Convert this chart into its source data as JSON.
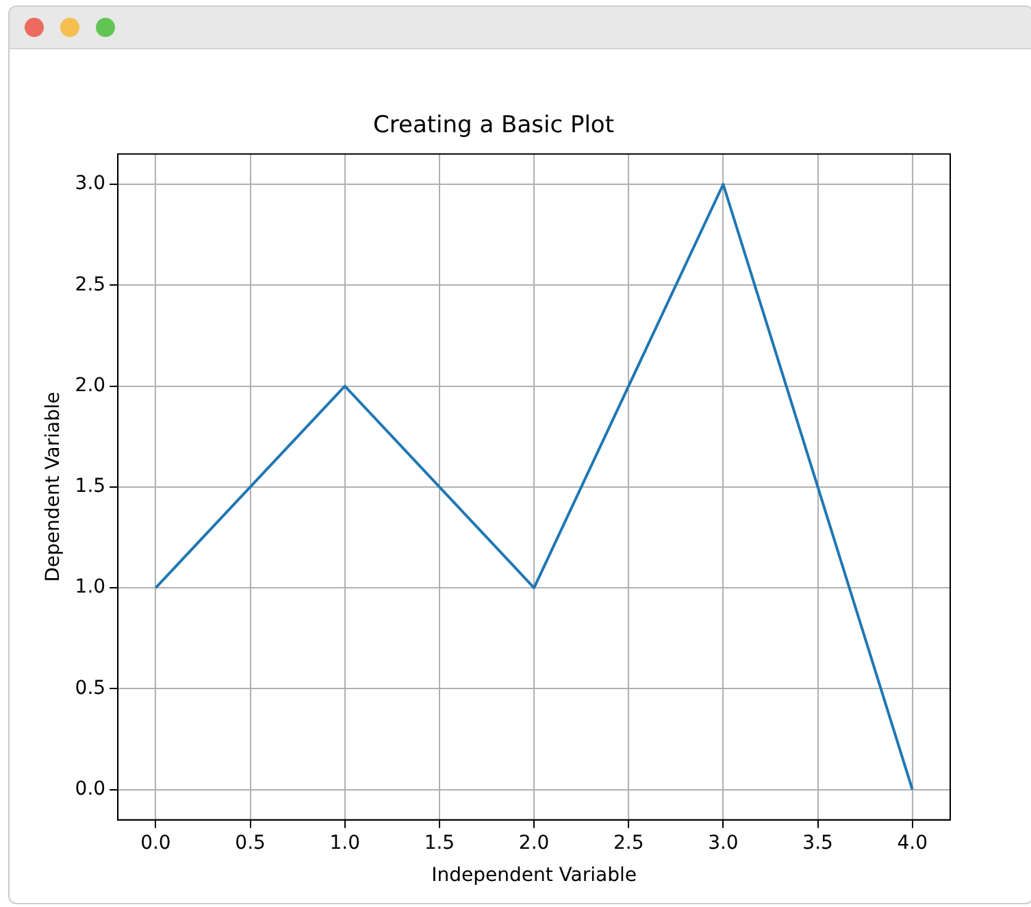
{
  "chart_data": {
    "type": "line",
    "title": "Creating a Basic Plot",
    "xlabel": "Independent Variable",
    "ylabel": "Dependent Variable",
    "x": [
      0,
      1,
      2,
      3,
      4
    ],
    "values": [
      1,
      2,
      1,
      3,
      0
    ],
    "color": "#1f77b4",
    "marker": "none",
    "grid": true,
    "xlim": [
      -0.2,
      4.2
    ],
    "ylim": [
      -0.15,
      3.15
    ],
    "xticks": [
      {
        "value": 0,
        "label": "0.0"
      },
      {
        "value": 0.5,
        "label": "0.5"
      },
      {
        "value": 1,
        "label": "1.0"
      },
      {
        "value": 1.5,
        "label": "1.5"
      },
      {
        "value": 2,
        "label": "2.0"
      },
      {
        "value": 2.5,
        "label": "2.5"
      },
      {
        "value": 3,
        "label": "3.0"
      },
      {
        "value": 3.5,
        "label": "3.5"
      },
      {
        "value": 4,
        "label": "4.0"
      }
    ],
    "yticks": [
      {
        "value": 0,
        "label": "0.0"
      },
      {
        "value": 0.5,
        "label": "0.5"
      },
      {
        "value": 1,
        "label": "1.0"
      },
      {
        "value": 1.5,
        "label": "1.5"
      },
      {
        "value": 2,
        "label": "2.0"
      },
      {
        "value": 2.5,
        "label": "2.5"
      },
      {
        "value": 3,
        "label": "3.0"
      }
    ]
  }
}
